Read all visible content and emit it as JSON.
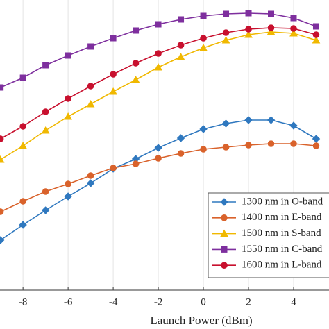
{
  "chart_data": {
    "type": "line",
    "x_label": "Launch Power (dBm)",
    "x": [
      -9,
      -8,
      -7,
      -6,
      -5,
      -4,
      -3,
      -2,
      -1,
      0,
      1,
      2,
      3,
      4,
      5
    ],
    "xlim": [
      -9.02,
      5.57
    ],
    "xticks": [
      -8,
      -6,
      -4,
      -2,
      0,
      2,
      4
    ],
    "ylim": [
      0,
      474
    ],
    "grid": true,
    "legend": "lower right",
    "series": [
      {
        "name": "1300 nm in O-band",
        "color": "#2f78bf",
        "marker": "diamond",
        "values": [
          128,
          150,
          171,
          191,
          210,
          231,
          245,
          261,
          275,
          288,
          296,
          301,
          301,
          293,
          274
        ]
      },
      {
        "name": "1400 nm in E-band",
        "color": "#d9622b",
        "marker": "circle",
        "values": [
          169,
          184,
          198,
          209,
          221,
          232,
          238,
          246,
          253,
          259,
          262,
          265,
          267,
          267,
          264
        ]
      },
      {
        "name": "1500 nm in S-band",
        "color": "#f0b800",
        "marker": "triangle",
        "values": [
          244,
          264,
          286,
          306,
          324,
          342,
          359,
          377,
          392,
          405,
          416,
          424,
          428,
          426,
          416
        ]
      },
      {
        "name": "1550 nm in C-band",
        "color": "#7e2f9e",
        "marker": "square",
        "values": [
          348,
          362,
          380,
          394,
          407,
          419,
          430,
          439,
          446,
          451,
          454,
          455,
          454,
          448,
          436
        ]
      },
      {
        "name": "1600 nm in L-band",
        "color": "#c8102e",
        "marker": "circle",
        "values": [
          274,
          292,
          313,
          332,
          350,
          367,
          383,
          397,
          409,
          419,
          427,
          432,
          434,
          433,
          424
        ]
      }
    ]
  }
}
